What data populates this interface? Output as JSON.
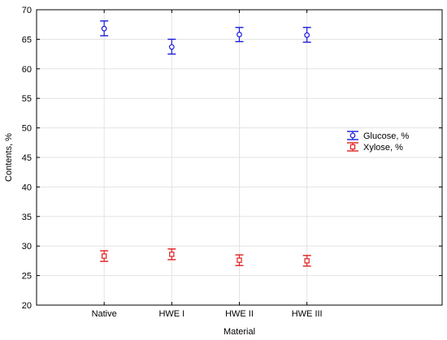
{
  "chart_data": {
    "type": "scatter",
    "xlabel": "Material",
    "ylabel": "Contents, %",
    "categories": [
      "Native",
      "HWE I",
      "HWE II",
      "HWE III"
    ],
    "ylim": [
      20,
      70
    ],
    "yticks": [
      "20",
      "25",
      "30",
      "35",
      "40",
      "45",
      "50",
      "55",
      "60",
      "65",
      "70"
    ],
    "grid": true,
    "legend_position": "right",
    "series": [
      {
        "name": "Glucose, %",
        "marker": "circle",
        "color": "#1a1adc",
        "values": [
          66.8,
          63.7,
          65.8,
          65.7
        ],
        "lower": [
          65.6,
          62.5,
          64.6,
          64.5
        ],
        "upper": [
          68.1,
          65.0,
          67.0,
          67.0
        ]
      },
      {
        "name": "Xylose, %",
        "marker": "square",
        "color": "#e02020",
        "values": [
          28.3,
          28.6,
          27.6,
          27.5
        ],
        "lower": [
          27.4,
          27.7,
          26.7,
          26.6
        ],
        "upper": [
          29.2,
          29.5,
          28.5,
          28.4
        ]
      }
    ]
  }
}
